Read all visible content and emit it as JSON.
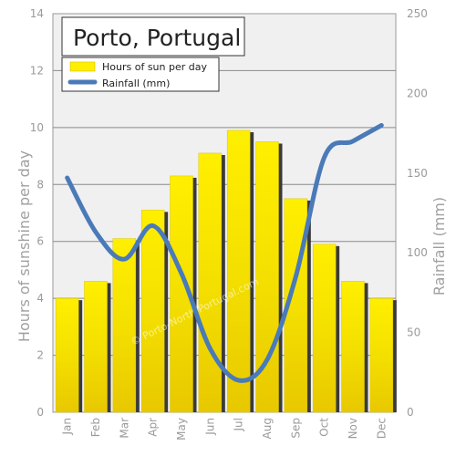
{
  "chart_data": {
    "type": "bar",
    "title": "Porto, Portugal",
    "categories": [
      "Jan",
      "Feb",
      "Mar",
      "Apr",
      "May",
      "Jun",
      "Jul",
      "Aug",
      "Sep",
      "Oct",
      "Nov",
      "Dec"
    ],
    "series": [
      {
        "name": "Hours of sun per day",
        "kind": "bar",
        "axis": "left",
        "values": [
          4.0,
          4.6,
          6.1,
          7.1,
          8.3,
          9.1,
          9.9,
          9.5,
          7.5,
          5.9,
          4.6,
          4.0
        ],
        "color": "#ffee00"
      },
      {
        "name": "Rainfall (mm)",
        "kind": "line",
        "axis": "right",
        "values": [
          147,
          113,
          96,
          117,
          87,
          40,
          20,
          33,
          85,
          160,
          170,
          180
        ],
        "color": "#4a7ab8"
      }
    ],
    "ylabel": "Hours of sunshine per day",
    "ylim": [
      0,
      14
    ],
    "yticks": [
      "0",
      "2",
      "4",
      "6",
      "8",
      "10",
      "12",
      "14"
    ],
    "y2label": "Rainfall (mm)",
    "y2lim": [
      0,
      250
    ],
    "y2ticks": [
      "0",
      "50",
      "100",
      "150",
      "200",
      "250"
    ],
    "grid": true,
    "legend": "top-left",
    "watermark": "© Porto-North-Portugal.com"
  }
}
